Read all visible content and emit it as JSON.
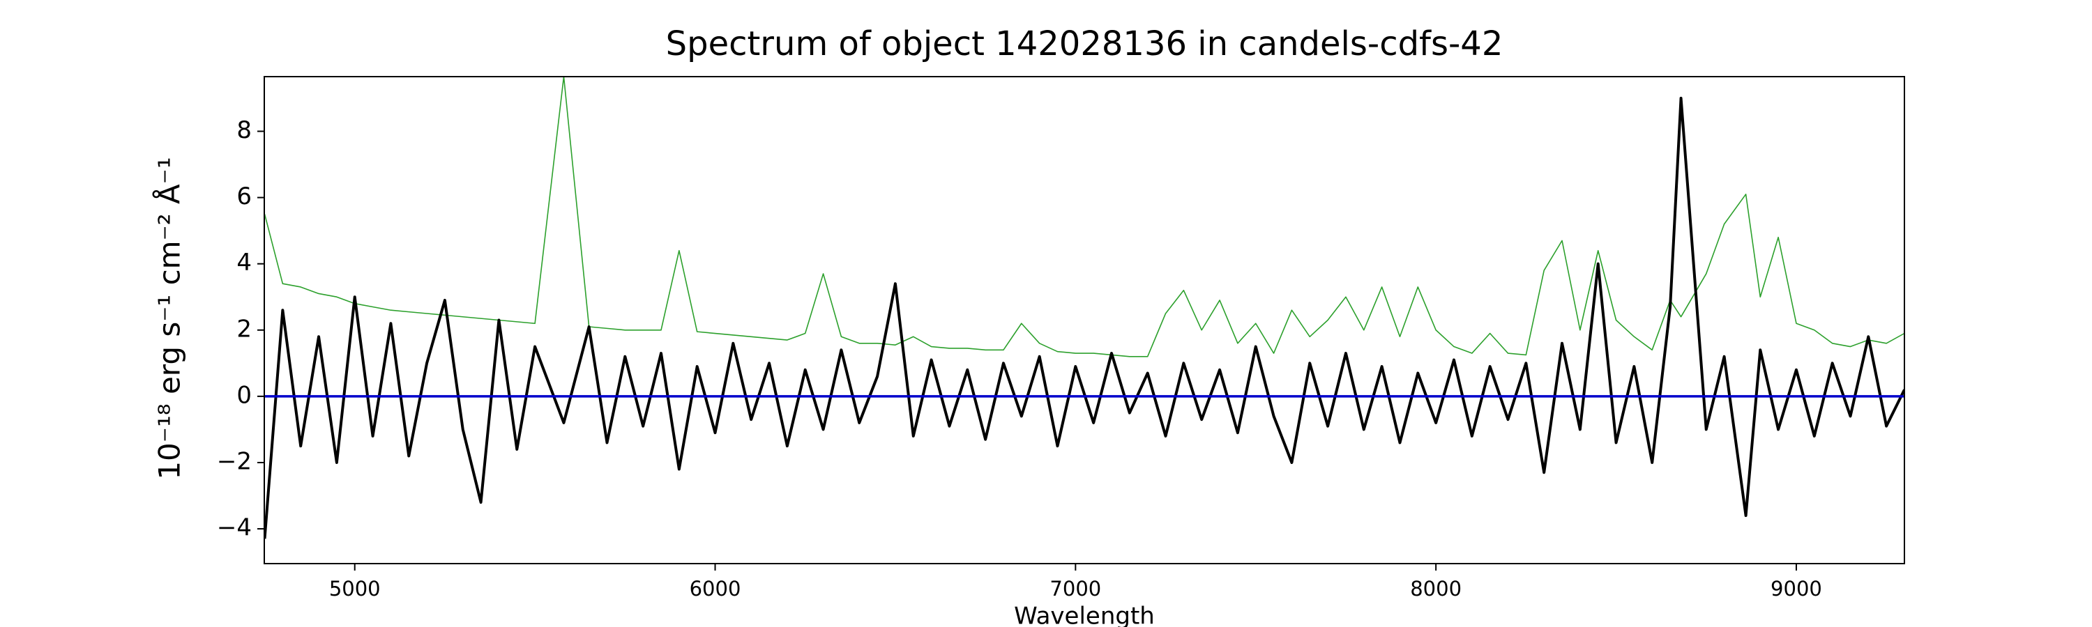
{
  "chart_data": {
    "type": "line",
    "title": "Spectrum of object 142028136 in candels-cdfs-42",
    "x_label": "Wavelength",
    "y_label": "10⁻¹⁸ erg s⁻¹ cm⁻² Å⁻¹",
    "xlim": [
      4749,
      9300
    ],
    "ylim": [
      -5.05,
      9.65
    ],
    "xticks": [
      5000,
      6000,
      7000,
      8000,
      9000
    ],
    "yticks": [
      {
        "value": -4,
        "label": "−4"
      },
      {
        "value": -2,
        "label": "−2"
      },
      0,
      2,
      4,
      6,
      8
    ],
    "grid": false,
    "x": [
      4750,
      4800,
      4850,
      4900,
      4950,
      5000,
      5050,
      5100,
      5150,
      5200,
      5250,
      5300,
      5350,
      5400,
      5450,
      5500,
      5580,
      5650,
      5700,
      5750,
      5800,
      5850,
      5900,
      5950,
      6000,
      6050,
      6100,
      6150,
      6200,
      6250,
      6300,
      6350,
      6400,
      6450,
      6500,
      6550,
      6600,
      6650,
      6700,
      6750,
      6800,
      6850,
      6900,
      6950,
      7000,
      7050,
      7100,
      7150,
      7200,
      7250,
      7300,
      7350,
      7400,
      7450,
      7500,
      7550,
      7600,
      7650,
      7700,
      7750,
      7800,
      7850,
      7900,
      7950,
      8000,
      8050,
      8100,
      8150,
      8200,
      8250,
      8300,
      8350,
      8400,
      8450,
      8500,
      8550,
      8600,
      8650,
      8680,
      8750,
      8800,
      8860,
      8900,
      8950,
      9000,
      9050,
      9100,
      9150,
      9200,
      9250,
      9300
    ],
    "series": [
      {
        "color": "#2ca02c",
        "width": 1.6,
        "values": [
          5.5,
          3.4,
          3.3,
          3.1,
          3.0,
          2.8,
          2.7,
          2.6,
          2.55,
          2.5,
          2.45,
          2.4,
          2.35,
          2.3,
          2.25,
          2.2,
          9.65,
          2.1,
          2.05,
          2.0,
          2.0,
          2.0,
          4.4,
          1.95,
          1.9,
          1.85,
          1.8,
          1.75,
          1.7,
          1.9,
          3.7,
          1.8,
          1.6,
          1.6,
          1.55,
          1.8,
          1.5,
          1.45,
          1.45,
          1.4,
          1.4,
          2.2,
          1.6,
          1.35,
          1.3,
          1.3,
          1.25,
          1.2,
          1.2,
          2.5,
          3.2,
          2.0,
          2.9,
          1.6,
          2.2,
          1.3,
          2.6,
          1.8,
          2.3,
          3.0,
          2.0,
          3.3,
          1.8,
          3.3,
          2.0,
          1.5,
          1.3,
          1.9,
          1.3,
          1.25,
          3.8,
          4.7,
          2.0,
          4.4,
          2.3,
          1.8,
          1.4,
          2.9,
          2.4,
          3.7,
          5.2,
          6.1,
          3.0,
          4.8,
          2.2,
          2.0,
          1.6,
          1.5,
          1.7,
          1.6,
          1.9
        ]
      },
      {
        "color": "#000000",
        "width": 4,
        "values": [
          -4.3,
          2.6,
          -1.5,
          1.8,
          -2.0,
          3.0,
          -1.2,
          2.2,
          -1.8,
          1.0,
          2.9,
          -1.0,
          -3.2,
          2.3,
          -1.6,
          1.5,
          -0.8,
          2.1,
          -1.4,
          1.2,
          -0.9,
          1.3,
          -2.2,
          0.9,
          -1.1,
          1.6,
          -0.7,
          1.0,
          -1.5,
          0.8,
          -1.0,
          1.4,
          -0.8,
          0.6,
          3.4,
          -1.2,
          1.1,
          -0.9,
          0.8,
          -1.3,
          1.0,
          -0.6,
          1.2,
          -1.5,
          0.9,
          -0.8,
          1.3,
          -0.5,
          0.7,
          -1.2,
          1.0,
          -0.7,
          0.8,
          -1.1,
          1.5,
          -0.6,
          -2.0,
          1.0,
          -0.9,
          1.3,
          -1.0,
          0.9,
          -1.4,
          0.7,
          -0.8,
          1.1,
          -1.2,
          0.9,
          -0.7,
          1.0,
          -2.3,
          1.6,
          -1.0,
          4.0,
          -1.4,
          0.9,
          -2.0,
          2.7,
          9.0,
          -1.0,
          1.2,
          -3.6,
          1.4,
          -1.0,
          0.8,
          -1.2,
          1.0,
          -0.6,
          1.8,
          -0.9,
          0.2
        ]
      },
      {
        "color": "#0000cc",
        "width": 3.5,
        "values": [
          0,
          0,
          0,
          0,
          0,
          0,
          0,
          0,
          0,
          0,
          0,
          0,
          0,
          0,
          0,
          0,
          0,
          0,
          0,
          0,
          0,
          0,
          0,
          0,
          0,
          0,
          0,
          0,
          0,
          0,
          0,
          0,
          0,
          0,
          0,
          0,
          0,
          0,
          0,
          0,
          0,
          0,
          0,
          0,
          0,
          0,
          0,
          0,
          0,
          0,
          0,
          0,
          0,
          0,
          0,
          0,
          0,
          0,
          0,
          0,
          0,
          0,
          0,
          0,
          0,
          0,
          0,
          0,
          0,
          0,
          0,
          0,
          0,
          0,
          0,
          0,
          0,
          0,
          0,
          0,
          0,
          0,
          0,
          0,
          0,
          0,
          0,
          0,
          0,
          0,
          0
        ]
      }
    ]
  }
}
